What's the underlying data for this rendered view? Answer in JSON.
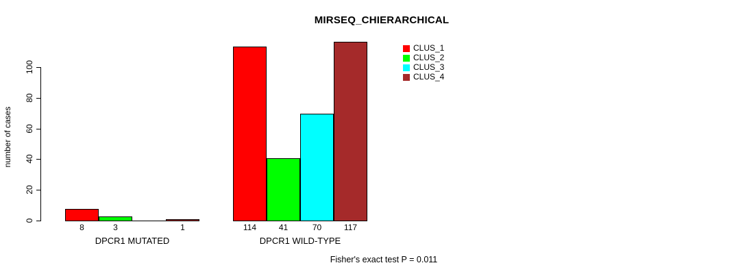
{
  "window": {
    "background": "#ffffff"
  },
  "chart_data": {
    "type": "bar",
    "title": "MIRSEQ_CHIERARCHICAL",
    "ylabel": "number of cases",
    "xlabel": "",
    "ylim": [
      0,
      100
    ],
    "yticks": [
      0,
      20,
      40,
      60,
      80,
      100
    ],
    "grid": false,
    "legend_position": "top-right-of-plot",
    "categories": [
      "DPCR1 MUTATED",
      "DPCR1 WILD-TYPE"
    ],
    "series": [
      {
        "name": "CLUS_1",
        "color": "#ff0000",
        "values": [
          8,
          114
        ]
      },
      {
        "name": "CLUS_2",
        "color": "#00ff00",
        "values": [
          3,
          41
        ]
      },
      {
        "name": "CLUS_3",
        "color": "#00ffff",
        "values": [
          0,
          70
        ]
      },
      {
        "name": "CLUS_4",
        "color": "#a52a2a",
        "values": [
          1,
          117
        ]
      }
    ],
    "bar_value_labels": [
      [
        "8",
        "3",
        "",
        "1"
      ],
      [
        "114",
        "41",
        "70",
        "117"
      ]
    ],
    "annotation": "Fisher's exact test P = 0.011"
  }
}
